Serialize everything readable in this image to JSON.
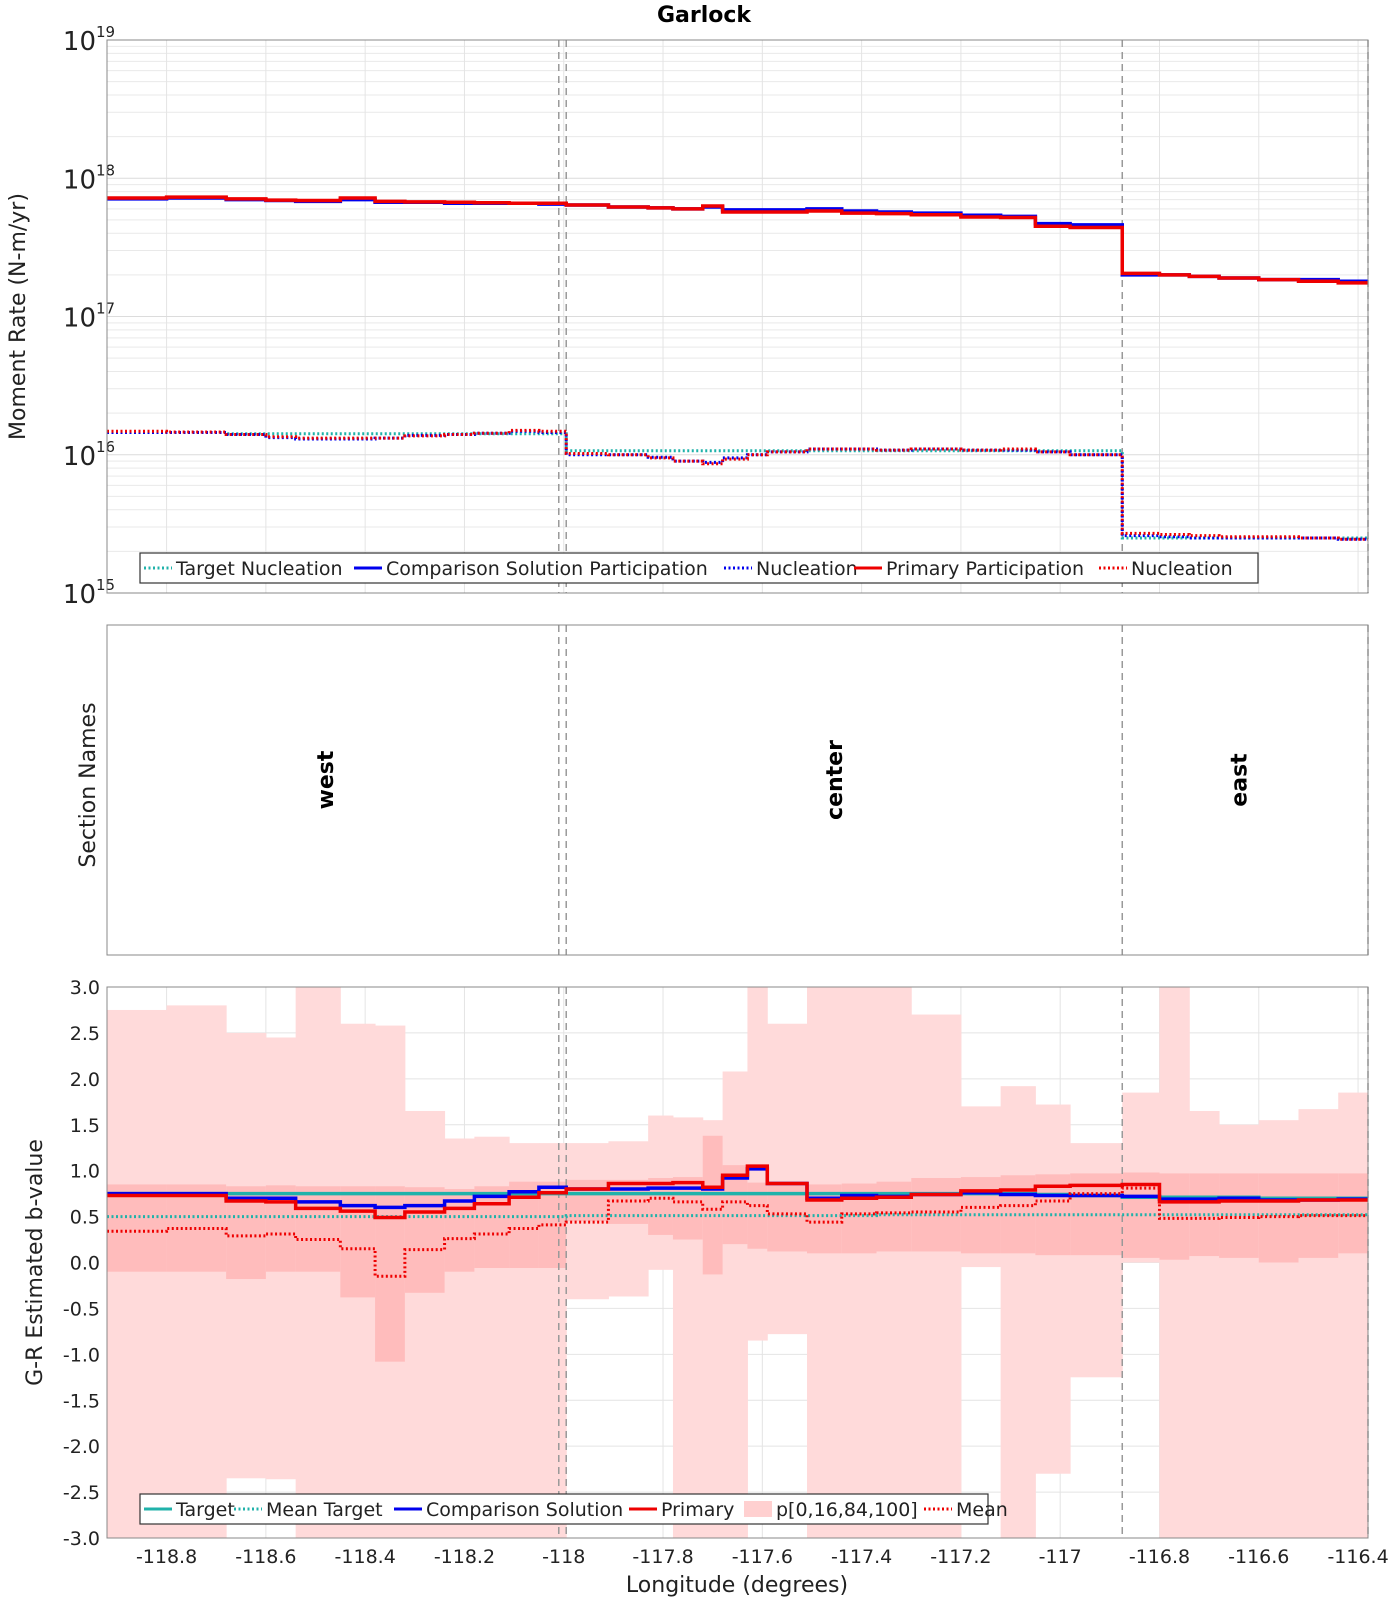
{
  "chart_data": {
    "type": "line",
    "title": "Garlock",
    "xlabel": "Longitude (degrees)",
    "xlim": [
      -118.92,
      -116.38
    ],
    "x_ticks": [
      "-118.8",
      "-118.6",
      "-118.4",
      "-118.2",
      "-118",
      "-117.8",
      "-117.6",
      "-117.4",
      "-117.2",
      "-117",
      "-116.8",
      "-116.6",
      "-116.4"
    ],
    "x_tick_values": [
      -118.8,
      -118.6,
      -118.4,
      -118.2,
      -118.0,
      -117.8,
      -117.6,
      -117.4,
      -117.2,
      -117.0,
      -116.8,
      -116.6,
      -116.4
    ],
    "section_boundaries": [
      -118.01,
      -117.995,
      -116.875,
      -116.38
    ],
    "subsection_edges": [
      -118.92,
      -118.8,
      -118.68,
      -118.6,
      -118.54,
      -118.45,
      -118.38,
      -118.32,
      -118.24,
      -118.18,
      -118.11,
      -118.05,
      -117.995,
      -117.91,
      -117.83,
      -117.78,
      -117.72,
      -117.68,
      -117.63,
      -117.59,
      -117.51,
      -117.44,
      -117.37,
      -117.3,
      -117.2,
      -117.12,
      -117.05,
      -116.98,
      -116.875,
      -116.8,
      -116.74,
      -116.68,
      -116.6,
      -116.52,
      -116.44,
      -116.38
    ],
    "panels": [
      {
        "name": "moment_rate",
        "ylabel": "Moment Rate (N-m/yr)",
        "yscale": "log",
        "ylim": [
          1000000000000000.0,
          1e+19
        ],
        "y_ticks": [
          {
            "value": 1000000000000000.0,
            "base": "10",
            "exp": "15"
          },
          {
            "value": 1e+16,
            "base": "10",
            "exp": "16"
          },
          {
            "value": 1e+17,
            "base": "10",
            "exp": "17"
          },
          {
            "value": 1e+18,
            "base": "10",
            "exp": "18"
          },
          {
            "value": 1e+19,
            "base": "10",
            "exp": "19"
          }
        ],
        "legend": [
          "Target Nucleation",
          "Comparison Solution Participation",
          "Nucleation",
          "Primary Participation",
          "Nucleation"
        ],
        "series": [
          {
            "name": "Target Nucleation",
            "color": "#20b2aa",
            "style": "dotted",
            "values": [
              1.45e+16,
              1.45e+16,
              1.42e+16,
              1.42e+16,
              1.42e+16,
              1.42e+16,
              1.42e+16,
              1.42e+16,
              1.42e+16,
              1.42e+16,
              1.42e+16,
              1.42e+16,
              1.07e+16,
              1.07e+16,
              1.07e+16,
              1.07e+16,
              1.07e+16,
              1.07e+16,
              1.07e+16,
              1.07e+16,
              1.07e+16,
              1.07e+16,
              1.07e+16,
              1.07e+16,
              1.07e+16,
              1.07e+16,
              1.07e+16,
              1.07e+16,
              2500000000000000.0,
              2500000000000000.0,
              2500000000000000.0,
              2500000000000000.0,
              2500000000000000.0,
              2500000000000000.0,
              2500000000000000.0
            ]
          },
          {
            "name": "Comparison Solution Participation",
            "color": "#0000ee",
            "style": "solid",
            "values": [
              7.1e+17,
              7.2e+17,
              7e+17,
              6.9e+17,
              6.8e+17,
              7e+17,
              6.7e+17,
              6.7e+17,
              6.6e+17,
              6.6e+17,
              6.6e+17,
              6.5e+17,
              6.4e+17,
              6.2e+17,
              6.1e+17,
              6e+17,
              6.2e+17,
              5.9e+17,
              5.9e+17,
              5.9e+17,
              6e+17,
              5.8e+17,
              5.7e+17,
              5.6e+17,
              5.4e+17,
              5.3e+17,
              4.7e+17,
              4.6e+17,
              2e+17,
              2e+17,
              1.95e+17,
              1.9e+17,
              1.85e+17,
              1.85e+17,
              1.8e+17
            ]
          },
          {
            "name": "Comparison Nucleation",
            "color": "#0000ee",
            "style": "dotted",
            "values": [
              1.45e+16,
              1.45e+16,
              1.4e+16,
              1.33e+16,
              1.3e+16,
              1.3e+16,
              1.32e+16,
              1.38e+16,
              1.4e+16,
              1.43e+16,
              1.48e+16,
              1.45e+16,
              1e+16,
              1e+16,
              9600000000000000.0,
              9000000000000000.0,
              8800000000000000.0,
              9500000000000000.0,
              1e+16,
              1.05e+16,
              1.1e+16,
              1.1e+16,
              1.08e+16,
              1.1e+16,
              1.08e+16,
              1.08e+16,
              1.05e+16,
              1e+16,
              2600000000000000.0,
              2550000000000000.0,
              2500000000000000.0,
              2500000000000000.0,
              2500000000000000.0,
              2500000000000000.0,
              2450000000000000.0
            ]
          },
          {
            "name": "Primary Participation",
            "color": "#ee0000",
            "style": "solid",
            "values": [
              7.2e+17,
              7.3e+17,
              7.1e+17,
              6.95e+17,
              6.9e+17,
              7.2e+17,
              6.8e+17,
              6.75e+17,
              6.7e+17,
              6.65e+17,
              6.6e+17,
              6.6e+17,
              6.4e+17,
              6.2e+17,
              6.1e+17,
              6e+17,
              6.3e+17,
              5.7e+17,
              5.7e+17,
              5.7e+17,
              5.8e+17,
              5.6e+17,
              5.55e+17,
              5.45e+17,
              5.25e+17,
              5.2e+17,
              4.5e+17,
              4.4e+17,
              2.05e+17,
              2e+17,
              1.95e+17,
              1.9e+17,
              1.85e+17,
              1.8e+17,
              1.75e+17
            ]
          },
          {
            "name": "Primary Nucleation",
            "color": "#ee0000",
            "style": "dotted",
            "values": [
              1.48e+16,
              1.46e+16,
              1.4e+16,
              1.35e+16,
              1.32e+16,
              1.32e+16,
              1.32e+16,
              1.37e+16,
              1.4e+16,
              1.43e+16,
              1.5e+16,
              1.48e+16,
              1.02e+16,
              1e+16,
              9500000000000000.0,
              9000000000000000.0,
              8600000000000000.0,
              9300000000000000.0,
              1e+16,
              1.05e+16,
              1.1e+16,
              1.1e+16,
              1.08e+16,
              1.1e+16,
              1.08e+16,
              1.1e+16,
              1.05e+16,
              1e+16,
              2700000000000000.0,
              2650000000000000.0,
              2600000000000000.0,
              2550000000000000.0,
              2550000000000000.0,
              2500000000000000.0,
              2450000000000000.0
            ]
          }
        ]
      },
      {
        "name": "section_names",
        "ylabel": "Section Names",
        "sections": [
          {
            "label": "west",
            "x": -118.465
          },
          {
            "label": "center",
            "x": -117.44
          },
          {
            "label": "east",
            "x": -116.625
          }
        ]
      },
      {
        "name": "b_value",
        "ylabel": "G-R Estimated b-value",
        "yscale": "linear",
        "ylim": [
          -3.0,
          3.0
        ],
        "y_ticks": [
          "-3.0",
          "-2.5",
          "-2.0",
          "-1.5",
          "-1.0",
          "-0.5",
          "0.0",
          "0.5",
          "1.0",
          "1.5",
          "2.0",
          "2.5",
          "3.0"
        ],
        "y_tick_values": [
          -3.0,
          -2.5,
          -2.0,
          -1.5,
          -1.0,
          -0.5,
          0.0,
          0.5,
          1.0,
          1.5,
          2.0,
          2.5,
          3.0
        ],
        "legend": [
          "Target",
          "Mean Target",
          "Comparison Solution",
          "Primary",
          "p[0,16,84,100]",
          "Mean"
        ],
        "band_outer_upper": [
          2.75,
          2.8,
          2.5,
          2.45,
          3.0,
          2.6,
          2.58,
          1.65,
          1.35,
          1.37,
          1.3,
          1.3,
          1.3,
          1.32,
          1.6,
          1.58,
          1.55,
          2.08,
          3.0,
          2.6,
          3.0,
          3.0,
          3.0,
          2.7,
          1.7,
          1.92,
          1.72,
          1.3,
          1.85,
          3.0,
          1.65,
          1.5,
          1.55,
          1.67,
          1.85,
          1.72,
          3.0
        ],
        "band_outer_lower": [
          -3.0,
          -3.0,
          -2.35,
          -2.36,
          -3.0,
          -3.0,
          -3.0,
          -3.0,
          -3.0,
          -3.0,
          -3.0,
          -3.0,
          -0.4,
          -0.37,
          -0.08,
          -3.0,
          -3.0,
          -3.0,
          -0.85,
          -0.78,
          -3.0,
          -3.0,
          -3.0,
          -3.0,
          -0.05,
          -3.0,
          -2.3,
          -1.25,
          0.0,
          -3.0,
          -3.0,
          -3.0,
          -3.0,
          -3.0,
          -3.0,
          -3.0,
          -3.0
        ],
        "band_inner_upper": [
          0.85,
          0.85,
          0.83,
          0.84,
          0.83,
          0.83,
          0.83,
          0.82,
          0.8,
          0.83,
          0.88,
          0.88,
          0.9,
          0.9,
          0.92,
          0.93,
          1.38,
          1.06,
          0.87,
          0.86,
          0.85,
          0.86,
          0.88,
          0.92,
          0.93,
          0.95,
          0.96,
          0.97,
          0.98,
          0.97,
          0.97,
          0.97,
          0.97,
          0.97,
          0.97,
          0.97,
          0.97
        ],
        "band_inner_lower": [
          -0.1,
          -0.1,
          -0.18,
          -0.1,
          -0.1,
          -0.38,
          -1.08,
          -0.33,
          -0.1,
          -0.06,
          -0.06,
          -0.06,
          0.45,
          0.42,
          0.3,
          0.25,
          -0.13,
          0.2,
          0.15,
          0.12,
          0.1,
          0.1,
          0.12,
          0.12,
          0.1,
          0.1,
          0.08,
          0.08,
          0.05,
          0.03,
          0.07,
          0.05,
          0.0,
          0.05,
          0.1,
          0.12,
          0.15
        ],
        "series": [
          {
            "name": "Target",
            "color": "#20b2aa",
            "style": "solid",
            "values": [
              0.75,
              0.75,
              0.75,
              0.75,
              0.75,
              0.75,
              0.75,
              0.75,
              0.75,
              0.75,
              0.75,
              0.75,
              0.75,
              0.75,
              0.75,
              0.75,
              0.75,
              0.75,
              0.75,
              0.75,
              0.75,
              0.75,
              0.75,
              0.75,
              0.75,
              0.75,
              0.74,
              0.73,
              0.71,
              0.71,
              0.71,
              0.71,
              0.7,
              0.7,
              0.7,
              0.7,
              0.7
            ]
          },
          {
            "name": "Mean Target",
            "color": "#20b2aa",
            "style": "dotted",
            "values": [
              0.5,
              0.5,
              0.5,
              0.5,
              0.5,
              0.5,
              0.5,
              0.5,
              0.5,
              0.5,
              0.5,
              0.5,
              0.51,
              0.51,
              0.51,
              0.51,
              0.51,
              0.51,
              0.51,
              0.51,
              0.51,
              0.51,
              0.52,
              0.52,
              0.52,
              0.52,
              0.52,
              0.52,
              0.52,
              0.52,
              0.52,
              0.52,
              0.52,
              0.52,
              0.52,
              0.52,
              0.52
            ]
          },
          {
            "name": "Comparison Solution",
            "color": "#0000ee",
            "style": "solid",
            "values": [
              0.75,
              0.75,
              0.7,
              0.7,
              0.66,
              0.62,
              0.6,
              0.62,
              0.67,
              0.72,
              0.77,
              0.82,
              0.8,
              0.8,
              0.81,
              0.81,
              0.8,
              0.92,
              1.02,
              0.86,
              0.7,
              0.73,
              0.72,
              0.74,
              0.76,
              0.74,
              0.73,
              0.73,
              0.72,
              0.69,
              0.69,
              0.7,
              0.68,
              0.68,
              0.69,
              0.7,
              0.7
            ]
          },
          {
            "name": "Primary",
            "color": "#ee0000",
            "style": "solid",
            "values": [
              0.73,
              0.73,
              0.67,
              0.66,
              0.59,
              0.56,
              0.49,
              0.55,
              0.59,
              0.64,
              0.71,
              0.76,
              0.8,
              0.86,
              0.86,
              0.87,
              0.82,
              0.95,
              1.05,
              0.86,
              0.68,
              0.7,
              0.71,
              0.74,
              0.78,
              0.79,
              0.83,
              0.84,
              0.85,
              0.66,
              0.66,
              0.67,
              0.67,
              0.68,
              0.68,
              0.7,
              0.71
            ]
          },
          {
            "name": "Mean",
            "color": "#ee0000",
            "style": "dotted",
            "values": [
              0.34,
              0.37,
              0.29,
              0.31,
              0.25,
              0.15,
              -0.15,
              0.14,
              0.26,
              0.31,
              0.37,
              0.41,
              0.44,
              0.67,
              0.7,
              0.66,
              0.58,
              0.66,
              0.62,
              0.53,
              0.44,
              0.53,
              0.54,
              0.55,
              0.6,
              0.62,
              0.67,
              0.75,
              0.81,
              0.48,
              0.48,
              0.49,
              0.5,
              0.51,
              0.51,
              0.52,
              0.53
            ]
          }
        ]
      }
    ]
  }
}
